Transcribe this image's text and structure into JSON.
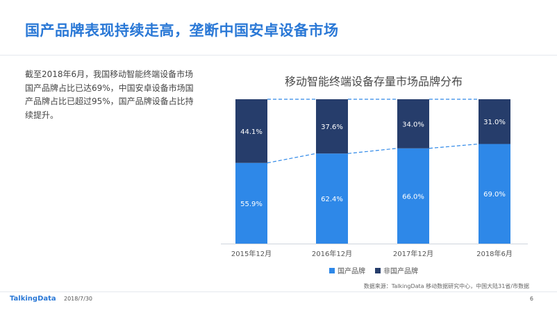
{
  "slide": {
    "title": "国产品牌表现持续走高，垄断中国安卓设备市场",
    "description": "截至2018年6月，我国移动智能终端设备市场国产品牌占比已达69%，中国安卓设备市场国产品牌占比已超过95%，国产品牌设备占比持续提升。",
    "source": "数据来源：TalkingData 移动数据研究中心，中国大陆31省/市数据",
    "brand": "TalkingData",
    "date": "2018/7/30",
    "page_number": "6"
  },
  "colors": {
    "accent": "#2a78d6",
    "domestic": "#2e88e8",
    "foreign": "#263d6b"
  },
  "chart_data": {
    "type": "bar",
    "stacked": true,
    "normalized": true,
    "title": "移动智能终端设备存量市场品牌分布",
    "categories": [
      "2015年12月",
      "2016年12月",
      "2017年12月",
      "2018年6月"
    ],
    "series": [
      {
        "name": "国产品牌",
        "values": [
          55.9,
          62.4,
          66.0,
          69.0
        ],
        "labels": [
          "55.9%",
          "62.4%",
          "66.0%",
          "69.0%"
        ]
      },
      {
        "name": "非国产品牌",
        "values": [
          44.1,
          37.6,
          34.0,
          31.0
        ],
        "labels": [
          "44.1%",
          "37.6%",
          "34.0%",
          "31.0%"
        ]
      }
    ],
    "ylim": [
      0,
      100
    ],
    "connector_lines": "dashed",
    "legend_position": "bottom",
    "grid": false
  }
}
